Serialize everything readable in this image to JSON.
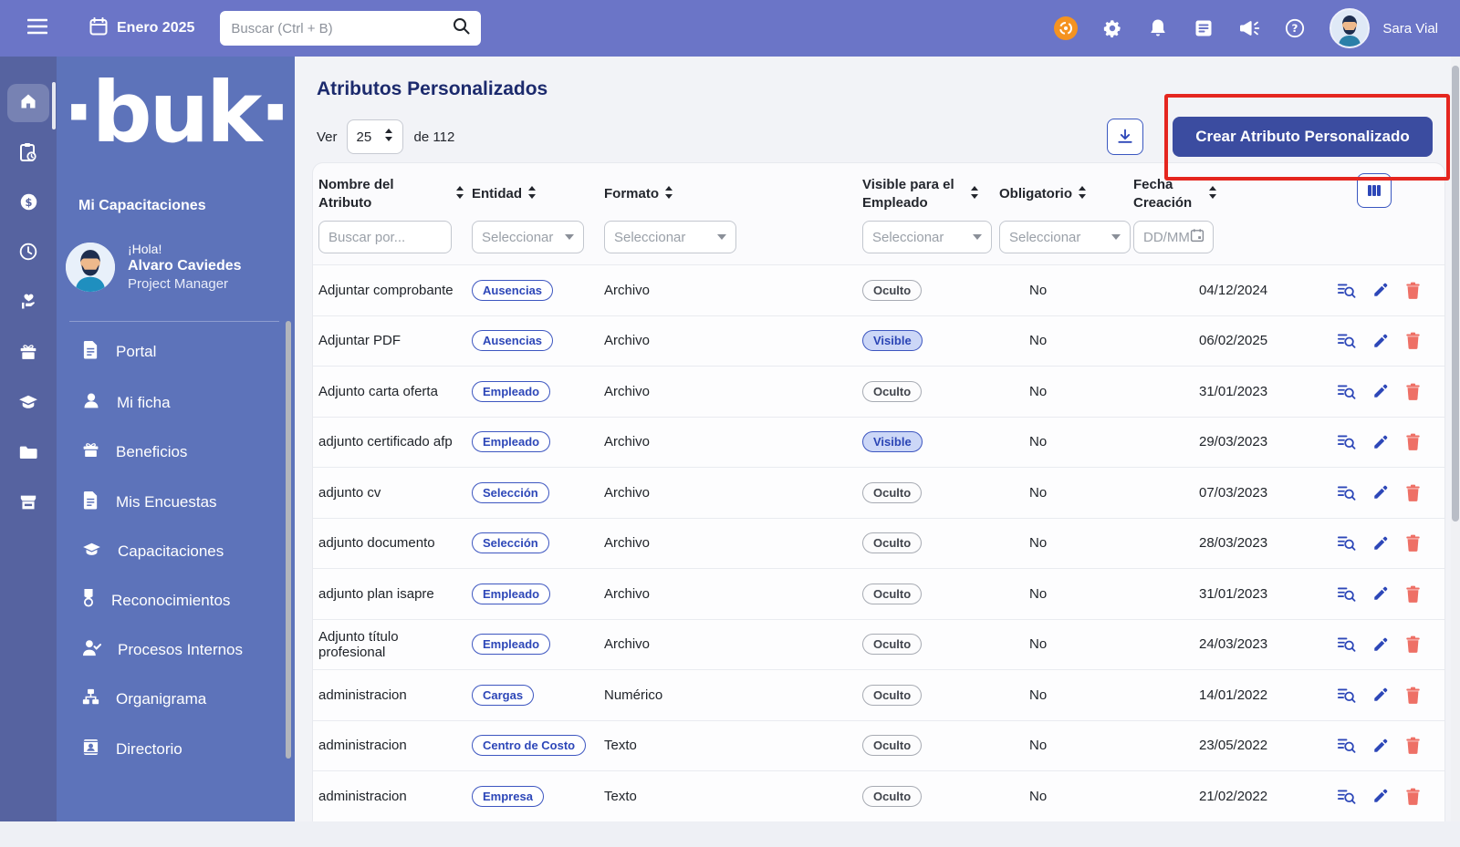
{
  "topbar": {
    "period": "Enero 2025",
    "search_placeholder": "Buscar (Ctrl + B)",
    "user_name": "Sara Vial"
  },
  "sidebar": {
    "logo": "·buk·",
    "section_label": "Mi Capacitaciones",
    "greeting": "¡Hola!",
    "profile_name": "Alvaro Caviedes",
    "profile_role": "Project Manager",
    "items": [
      {
        "label": "Portal",
        "icon": "document-icon"
      },
      {
        "label": "Mi ficha",
        "icon": "person-icon"
      },
      {
        "label": "Beneficios",
        "icon": "gift-icon"
      },
      {
        "label": "Mis Encuestas",
        "icon": "document-icon"
      },
      {
        "label": "Capacitaciones",
        "icon": "graduation-cap-icon"
      },
      {
        "label": "Reconocimientos",
        "icon": "medal-icon"
      },
      {
        "label": "Procesos Internos",
        "icon": "person-check-icon"
      },
      {
        "label": "Organigrama",
        "icon": "org-chart-icon"
      },
      {
        "label": "Directorio",
        "icon": "contact-card-icon"
      }
    ]
  },
  "rail_items": [
    "home",
    "clipboard-clock",
    "dollar",
    "clock",
    "hand-heart",
    "gift",
    "graduation-cap",
    "folder",
    "store"
  ],
  "page": {
    "title": "Atributos Personalizados",
    "view_label": "Ver",
    "page_size": "25",
    "total_label": "de 112",
    "create_button_label": "Crear Atributo Personalizado"
  },
  "table": {
    "columns": [
      "Nombre del Atributo",
      "Entidad",
      "Formato",
      "Visible para el Empleado",
      "Obligatorio",
      "Fecha Creación"
    ],
    "filters": {
      "name_placeholder": "Buscar por...",
      "select_placeholder": "Seleccionar",
      "date_placeholder": "DD/MM"
    },
    "rows": [
      {
        "name": "Adjuntar comprobante",
        "entity": "Ausencias",
        "format": "Archivo",
        "visibility": "Oculto",
        "required": "No",
        "created": "04/12/2024"
      },
      {
        "name": "Adjuntar PDF",
        "entity": "Ausencias",
        "format": "Archivo",
        "visibility": "Visible",
        "required": "No",
        "created": "06/02/2025"
      },
      {
        "name": "Adjunto carta oferta",
        "entity": "Empleado",
        "format": "Archivo",
        "visibility": "Oculto",
        "required": "No",
        "created": "31/01/2023"
      },
      {
        "name": "adjunto certificado afp",
        "entity": "Empleado",
        "format": "Archivo",
        "visibility": "Visible",
        "required": "No",
        "created": "29/03/2023"
      },
      {
        "name": "adjunto cv",
        "entity": "Selección",
        "format": "Archivo",
        "visibility": "Oculto",
        "required": "No",
        "created": "07/03/2023"
      },
      {
        "name": "adjunto documento",
        "entity": "Selección",
        "format": "Archivo",
        "visibility": "Oculto",
        "required": "No",
        "created": "28/03/2023"
      },
      {
        "name": "adjunto plan isapre",
        "entity": "Empleado",
        "format": "Archivo",
        "visibility": "Oculto",
        "required": "No",
        "created": "31/01/2023"
      },
      {
        "name": "Adjunto título profesional",
        "entity": "Empleado",
        "format": "Archivo",
        "visibility": "Oculto",
        "required": "No",
        "created": "24/03/2023"
      },
      {
        "name": "administracion",
        "entity": "Cargas",
        "format": "Numérico",
        "visibility": "Oculto",
        "required": "No",
        "created": "14/01/2022"
      },
      {
        "name": "administracion",
        "entity": "Centro de Costo",
        "format": "Texto",
        "visibility": "Oculto",
        "required": "No",
        "created": "23/05/2022"
      },
      {
        "name": "administracion",
        "entity": "Empresa",
        "format": "Texto",
        "visibility": "Oculto",
        "required": "No",
        "created": "21/02/2022"
      }
    ]
  },
  "colors": {
    "topbar": "#6b75c7",
    "rail": "#5663a0",
    "sidebar": "#5d73ba",
    "accent_blue": "#3b4ca0",
    "badge_blue": "#2d47b8",
    "annotation_red": "#e5261f",
    "trash_red": "#ee7066",
    "support_orange": "#f59320"
  }
}
